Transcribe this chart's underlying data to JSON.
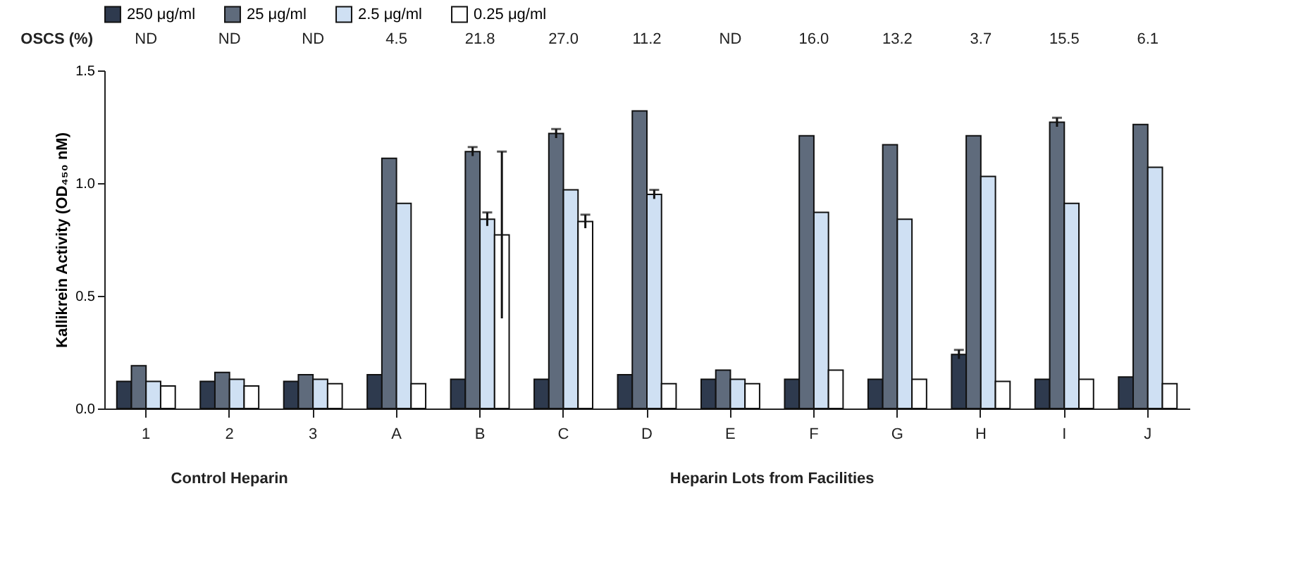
{
  "chart_data": {
    "type": "bar",
    "ylabel": "Kallikrein Activity (OD₄₅₀ nM)",
    "categories": [
      "1",
      "2",
      "3",
      "A",
      "B",
      "C",
      "D",
      "E",
      "F",
      "G",
      "H",
      "I",
      "J"
    ],
    "series": [
      {
        "name": "250 μg/ml",
        "color": "#2e3a4e",
        "values": [
          0.12,
          0.12,
          0.12,
          0.15,
          0.13,
          0.13,
          0.15,
          0.13,
          0.13,
          0.13,
          0.24,
          0.13,
          0.14
        ],
        "errors": [
          null,
          null,
          null,
          null,
          null,
          null,
          null,
          null,
          null,
          null,
          0.02,
          null,
          null
        ]
      },
      {
        "name": "25 μg/ml",
        "color": "#5f6b7c",
        "values": [
          0.19,
          0.16,
          0.15,
          1.11,
          1.14,
          1.22,
          1.32,
          0.17,
          1.21,
          1.17,
          1.21,
          1.27,
          1.26
        ],
        "errors": [
          null,
          null,
          null,
          null,
          0.02,
          0.02,
          null,
          null,
          null,
          null,
          null,
          0.02,
          null
        ]
      },
      {
        "name": "2.5 μg/ml",
        "color": "#cfe0f3",
        "values": [
          0.12,
          0.13,
          0.13,
          0.91,
          0.84,
          0.97,
          0.95,
          0.13,
          0.87,
          0.84,
          1.03,
          0.91,
          1.07
        ],
        "errors": [
          null,
          null,
          null,
          null,
          0.03,
          null,
          0.02,
          null,
          null,
          null,
          null,
          null,
          null
        ]
      },
      {
        "name": "0.25 μg/ml",
        "color": "#ffffff",
        "values": [
          0.1,
          0.1,
          0.11,
          0.11,
          0.77,
          0.83,
          0.11,
          0.11,
          0.17,
          0.13,
          0.12,
          0.13,
          0.11
        ],
        "errors": [
          null,
          null,
          null,
          null,
          0.37,
          0.03,
          null,
          null,
          null,
          null,
          null,
          null,
          null
        ]
      }
    ],
    "ylim": [
      0,
      1.5
    ],
    "yticks": [
      {
        "value": 0,
        "label": "0.0"
      },
      {
        "value": 0.5,
        "label": "0.5"
      },
      {
        "value": 1,
        "label": "1.0"
      },
      {
        "value": 1.5,
        "label": "1.5"
      }
    ],
    "grid": false,
    "legend": "top",
    "annotations": [
      "OSCS (%)",
      "ND",
      "ND",
      "ND",
      "4.5",
      "21.8",
      "27.0",
      "11.2",
      "ND",
      "16.0",
      "13.2",
      "3.7",
      "15.5",
      "6.1",
      "Control Heparin",
      "Heparin Lots from Facilities"
    ]
  }
}
